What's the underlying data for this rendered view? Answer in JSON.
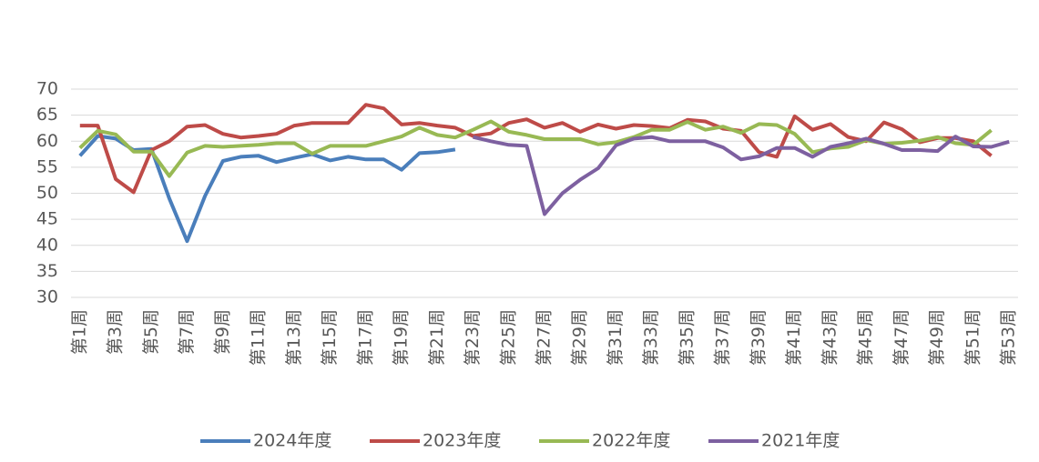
{
  "chart_data": {
    "type": "line",
    "categories": [
      "第1周",
      null,
      "第3周",
      null,
      "第5周",
      null,
      "第7周",
      null,
      "第9周",
      null,
      "第11周",
      null,
      "第13周",
      null,
      "第15周",
      null,
      "第17周",
      null,
      "第19周",
      null,
      "第21周",
      null,
      "第23周",
      null,
      "第25周",
      null,
      "第27周",
      null,
      "第29周",
      null,
      "第31周",
      null,
      "第33周",
      null,
      "第35周",
      null,
      "第37周",
      null,
      "第39周",
      null,
      "第41周",
      null,
      "第43周",
      null,
      "第45周",
      null,
      "第47周",
      null,
      "第49周",
      null,
      "第51周",
      null,
      "第53周"
    ],
    "series": [
      {
        "name": "2024年度",
        "color": "#4a7ebb",
        "values": [
          57.2,
          61,
          60.5,
          58.3,
          58.5,
          49,
          40.8,
          49.5,
          56.2,
          57,
          57.2,
          56,
          56.8,
          57.5,
          56.3,
          57,
          56.5,
          56.5,
          54.5,
          57.7,
          57.9,
          58.4,
          null,
          null,
          null,
          null,
          null,
          null,
          null,
          null,
          null,
          null,
          null,
          null,
          null,
          null,
          null,
          null,
          null,
          null,
          null,
          null,
          null,
          null,
          null,
          null,
          null,
          null,
          null,
          null,
          null,
          null,
          null
        ]
      },
      {
        "name": "2023年度",
        "color": "#be4b48",
        "values": [
          63,
          63,
          52.7,
          50.2,
          58.3,
          60,
          62.8,
          63.1,
          61.4,
          60.7,
          61,
          61.4,
          63,
          63.5,
          63.5,
          63.5,
          67,
          66.3,
          63.2,
          63.5,
          63,
          62.6,
          61,
          61.5,
          63.5,
          64.2,
          62.6,
          63.5,
          61.8,
          63.2,
          62.4,
          63.1,
          62.9,
          62.5,
          64.1,
          63.8,
          62.4,
          62,
          57.9,
          57,
          64.8,
          62.2,
          63.3,
          60.8,
          60,
          63.6,
          62.3,
          59.8,
          60.6,
          60.6,
          60,
          57.2,
          null
        ]
      },
      {
        "name": "2022年度",
        "color": "#98b954",
        "values": [
          58.7,
          62,
          61.3,
          58,
          58,
          53.3,
          57.8,
          59.1,
          58.9,
          59.1,
          59.3,
          59.6,
          59.6,
          57.6,
          59.1,
          59.1,
          59.1,
          60,
          60.9,
          62.6,
          61.2,
          60.7,
          62.2,
          63.8,
          61.8,
          61.2,
          60.4,
          60.4,
          60.4,
          59.4,
          59.8,
          60.8,
          62.2,
          62.2,
          63.7,
          62.2,
          62.8,
          61.6,
          63.3,
          63.1,
          61.4,
          57.9,
          58.6,
          58.9,
          60.2,
          59.5,
          59.7,
          60.1,
          60.8,
          59.6,
          59.3,
          62.1,
          null
        ]
      },
      {
        "name": "2021年度",
        "color": "#7d60a0",
        "values": [
          null,
          null,
          null,
          null,
          null,
          null,
          null,
          null,
          null,
          null,
          null,
          null,
          null,
          null,
          null,
          null,
          null,
          null,
          null,
          null,
          null,
          null,
          60.8,
          60,
          59.3,
          59.1,
          46,
          50,
          52.6,
          54.8,
          59.2,
          60.5,
          60.8,
          60,
          60,
          60,
          58.8,
          56.5,
          57.1,
          58.7,
          58.7,
          57,
          58.9,
          59.6,
          60.5,
          59.5,
          58.3,
          58.3,
          58.1,
          60.9,
          59,
          58.9,
          59.9
        ]
      }
    ],
    "ylim": [
      30,
      70
    ],
    "yticks": [
      30,
      35,
      40,
      45,
      50,
      55,
      60,
      65,
      70
    ],
    "grid": true,
    "legend": "bottom"
  }
}
